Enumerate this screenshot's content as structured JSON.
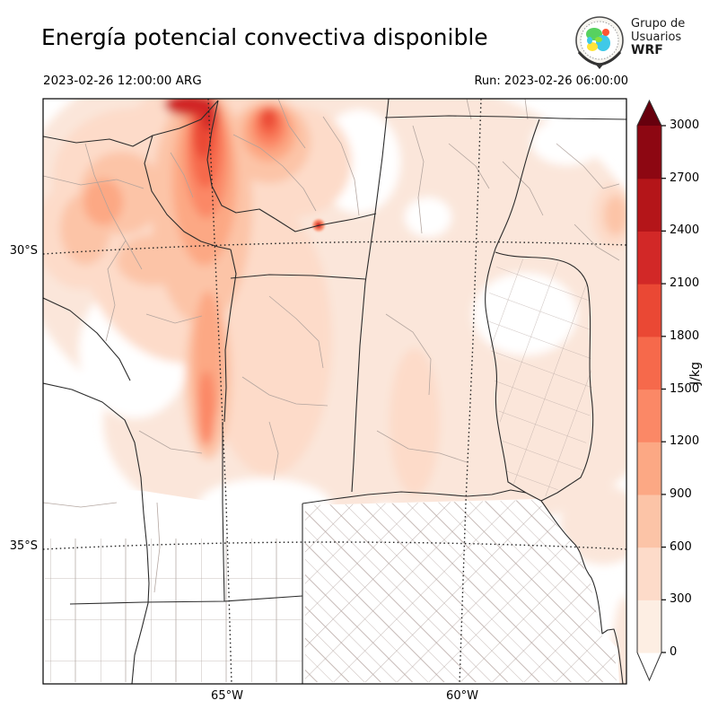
{
  "header": {
    "title": "Energía potencial convectiva disponible",
    "valid_time": "2023-02-26 12:00:00 ARG",
    "run_label": "Run: 2023-02-26 06:00:00"
  },
  "logo": {
    "name": "wrf-users-group-logo",
    "line1": "Grupo de",
    "line2": "Usuarios",
    "line3": "WRF"
  },
  "map": {
    "lat_labels": [
      "30°S",
      "35°S"
    ],
    "lon_labels": [
      "65°W",
      "60°W"
    ]
  },
  "colorbar": {
    "unit": "J/kg",
    "tick_values": [
      0,
      300,
      600,
      900,
      1200,
      1500,
      1800,
      2100,
      2400,
      2700,
      3000
    ],
    "segment_colors_low_to_high": [
      "#fdeee3",
      "#fddbc9",
      "#fcc4a7",
      "#fca884",
      "#fb8866",
      "#f6694b",
      "#ea4834",
      "#d22827",
      "#b41519",
      "#8d0712"
    ],
    "over_color": "#67000d",
    "under_color": "#ffffff"
  },
  "chart_data": {
    "type": "heatmap",
    "title": "Energía potencial convectiva disponible",
    "variable": "CAPE",
    "unit": "J/kg",
    "levels": [
      0,
      300,
      600,
      900,
      1200,
      1500,
      1800,
      2100,
      2400,
      2700,
      3000
    ],
    "legend_position": "right",
    "x_axis_ticks": [
      "65°W",
      "60°W"
    ],
    "y_axis_ticks": [
      "30°S",
      "35°S"
    ],
    "notes": "Shaded CAPE field over central-northern Argentina; maximum band (1800-2400 J/kg) along the northwest near 65°W north of 30°S; values near 0 over the southwest, La Pampa and Buenos Aires."
  }
}
